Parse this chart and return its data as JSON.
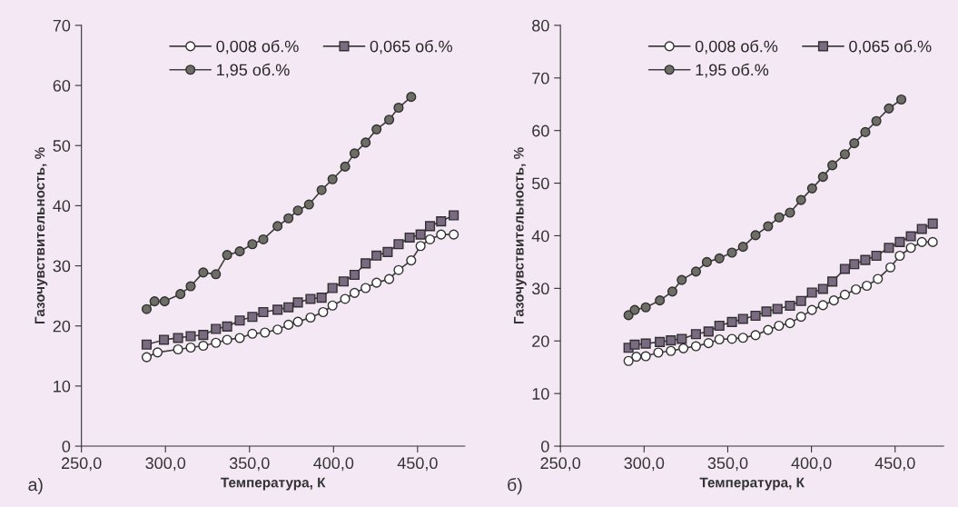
{
  "chart_data": [
    {
      "type": "line",
      "xlabel": "Температура, К",
      "ylabel": "Газочувствительность, %",
      "annotations": [
        "а)"
      ],
      "legend": "top",
      "grid": false,
      "line_style": "solid",
      "xlim": [
        250,
        478
      ],
      "xticks": [
        {
          "value": 250,
          "label": "250,0"
        },
        {
          "value": 300,
          "label": "300,0"
        },
        {
          "value": 350,
          "label": "350,0"
        },
        {
          "value": 400,
          "label": "400,0"
        },
        {
          "value": 450,
          "label": "450,0"
        }
      ],
      "ylim": [
        0,
        70
      ],
      "yticks": [
        0,
        10,
        20,
        30,
        40,
        50,
        60,
        70
      ],
      "series": [
        {
          "name": "0,008 об.%",
          "color": "#ffffff",
          "marker": "circle",
          "x": [
            288.8,
            295.3,
            307.5,
            315,
            322.5,
            330,
            336.7,
            344.2,
            351.7,
            359.2,
            366.7,
            373.2,
            378.8,
            386.3,
            393.8,
            399.4,
            406.9,
            412.5,
            419.1,
            425.6,
            433.1,
            438.7,
            446.2,
            451.8,
            457.4,
            464,
            471.5
          ],
          "values": [
            14.8,
            15.6,
            16.1,
            16.4,
            16.7,
            17.2,
            17.7,
            18.0,
            18.7,
            18.9,
            19.4,
            20.2,
            20.7,
            21.4,
            22.3,
            23.4,
            24.5,
            25.5,
            26.3,
            27.2,
            27.8,
            29.3,
            30.9,
            33.3,
            34.4,
            35.2,
            35.2
          ]
        },
        {
          "name": "0,065 об.%",
          "color": "#7a6a82",
          "marker": "square",
          "x": [
            288.8,
            299.1,
            307.5,
            315,
            322.5,
            330,
            336.7,
            344.2,
            351.7,
            358.2,
            366.7,
            373.2,
            378.8,
            386.3,
            392.9,
            399.4,
            406,
            412.5,
            419.1,
            425.6,
            432.2,
            438.7,
            445.3,
            451.8,
            457.4,
            464,
            471.5
          ],
          "values": [
            16.9,
            17.7,
            18.0,
            18.3,
            18.5,
            19.5,
            19.9,
            20.9,
            21.5,
            22.3,
            22.7,
            23.1,
            23.9,
            24.5,
            24.7,
            26.3,
            27.4,
            28.5,
            30.4,
            31.7,
            32.3,
            33.6,
            34.7,
            35.2,
            36.6,
            37.4,
            38.4
          ]
        },
        {
          "name": "1,95 об.%",
          "color": "#6e6e66",
          "marker": "circle",
          "x": [
            288.8,
            293.5,
            299.5,
            308.9,
            315,
            322.5,
            330,
            336.7,
            344.2,
            351.7,
            358.2,
            366.7,
            373.2,
            378.8,
            385.4,
            392.9,
            399.4,
            406.9,
            412.5,
            419.1,
            425.6,
            433.1,
            438.7,
            446.2
          ],
          "values": [
            22.8,
            24.1,
            24.1,
            25.3,
            26.6,
            28.9,
            28.6,
            31.8,
            32.4,
            33.6,
            34.4,
            36.6,
            37.9,
            39.2,
            40.2,
            42.6,
            44.4,
            46.5,
            48.7,
            50.5,
            52.7,
            54.3,
            56.3,
            58.1
          ]
        }
      ]
    },
    {
      "type": "line",
      "xlabel": "Температура, К",
      "ylabel": "Газочувствительность, %",
      "annotations": [
        "б)"
      ],
      "legend": "top",
      "grid": false,
      "line_style": "solid",
      "xlim": [
        250,
        479
      ],
      "xticks": [
        {
          "value": 250,
          "label": "250,0"
        },
        {
          "value": 300,
          "label": "300,0"
        },
        {
          "value": 350,
          "label": "350,0"
        },
        {
          "value": 400,
          "label": "400,0"
        },
        {
          "value": 450,
          "label": "450,0"
        }
      ],
      "ylim": [
        0,
        80
      ],
      "yticks": [
        0,
        10,
        20,
        30,
        40,
        50,
        60,
        70,
        80
      ],
      "series": [
        {
          "name": "0,008 об.%",
          "color": "#ffffff",
          "marker": "circle",
          "x": [
            290.7,
            295.4,
            301.0,
            308.5,
            316.0,
            323.5,
            331.0,
            338.5,
            345.0,
            352.5,
            359.1,
            366.6,
            374.1,
            380.6,
            387.2,
            393.8,
            400.3,
            406.9,
            413.4,
            420.0,
            426.6,
            433.1,
            439.7,
            447.2,
            452.8,
            459.4,
            466.0,
            472.5
          ],
          "values": [
            16.2,
            17.0,
            17.1,
            17.8,
            18.1,
            18.6,
            19.0,
            19.6,
            20.3,
            20.4,
            20.6,
            21.1,
            22.1,
            22.9,
            23.4,
            24.6,
            25.9,
            26.8,
            27.7,
            28.8,
            29.8,
            30.5,
            31.8,
            34.0,
            36.2,
            37.7,
            38.8,
            38.8
          ]
        },
        {
          "name": "0,065 об.%",
          "color": "#7a6a82",
          "marker": "square",
          "x": [
            290.7,
            294.4,
            301.0,
            309.4,
            316.0,
            322.5,
            331.0,
            338.5,
            345.0,
            352.5,
            359.1,
            366.6,
            373.1,
            379.7,
            387.2,
            393.8,
            400.3,
            406.9,
            412.5,
            420.0,
            425.6,
            432.2,
            438.8,
            446.3,
            452.8,
            459.4,
            466.0,
            472.5
          ],
          "values": [
            18.7,
            19.3,
            19.5,
            19.8,
            20.1,
            20.4,
            21.3,
            21.8,
            22.9,
            23.6,
            24.2,
            24.8,
            25.6,
            26.1,
            26.7,
            27.6,
            29.2,
            29.9,
            31.3,
            33.7,
            34.6,
            35.4,
            36.2,
            37.7,
            38.8,
            39.9,
            41.3,
            42.3
          ]
        },
        {
          "name": "1,95 об.%",
          "color": "#6e6e66",
          "marker": "circle",
          "x": [
            290.7,
            294.4,
            301.0,
            309.4,
            316.9,
            322.5,
            331.0,
            337.5,
            345.0,
            352.5,
            359.1,
            366.6,
            374.1,
            380.7,
            387.2,
            393.8,
            400.4,
            406.9,
            412.5,
            420.0,
            425.6,
            432.2,
            438.8,
            446.3,
            453.7
          ],
          "values": [
            24.9,
            25.9,
            26.4,
            27.7,
            29.4,
            31.6,
            33.2,
            35.0,
            35.7,
            36.8,
            37.9,
            40.1,
            41.8,
            43.5,
            44.4,
            46.8,
            49.0,
            51.2,
            53.4,
            55.5,
            57.6,
            59.7,
            61.8,
            64.2,
            65.9
          ]
        }
      ]
    }
  ]
}
